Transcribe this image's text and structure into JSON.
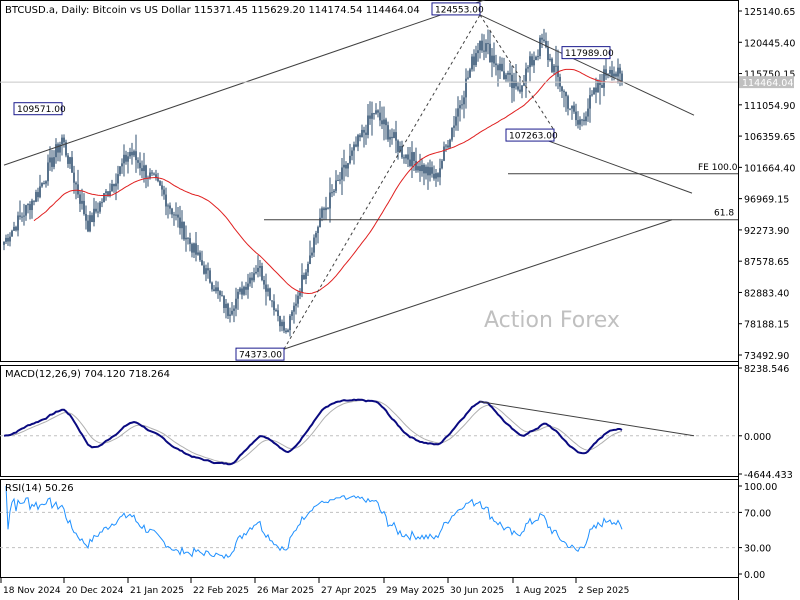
{
  "main_panel": {
    "header": "BTCUSD.a, Daily:  Bitcoin vs US Dollar  115371.45 115629.20 114174.54 114464.04",
    "watermark": "Action Forex",
    "last_price_label": "114464.04",
    "price_ticks": [
      "125140.65",
      "120445.40",
      "115750.15",
      "111054.90",
      "106359.65",
      "101664.40",
      "96969.15",
      "92273.90",
      "87578.65",
      "82883.40",
      "78188.15",
      "73492.90"
    ],
    "annotations": [
      {
        "id": "high-109571",
        "text": "109571.00"
      },
      {
        "id": "low-74373",
        "text": "74373.00"
      },
      {
        "id": "high-124553",
        "text": "124553.00"
      },
      {
        "id": "low-107263",
        "text": "107263.00"
      },
      {
        "id": "high-117989",
        "text": "117989.00"
      }
    ],
    "fib_labels": {
      "fe": "FE 100.0",
      "retr": "61.8"
    }
  },
  "macd_panel": {
    "header": "MACD(12,26,9) 704.120 718.264",
    "ticks": [
      "8238.546",
      "0.000",
      "-4644.433"
    ]
  },
  "rsi_panel": {
    "header": "RSI(14) 50.26",
    "ticks": [
      "100.00",
      "70.00",
      "30.00",
      "0.00"
    ]
  },
  "x_axis": {
    "labels": [
      "18 Nov 2024",
      "20 Dec 2024",
      "21 Jan 2025",
      "22 Feb 2025",
      "26 Mar 2025",
      "27 Apr 2025",
      "29 May 2025",
      "30 Jun 2025",
      "1 Aug 2025",
      "2 Sep 2025"
    ]
  },
  "colors": {
    "candle": "#2f4f6f",
    "ma": "#e02020",
    "macd": "#0a0a80",
    "signal": "#b0b0b0",
    "rsi": "#1e90ff",
    "trend": "#404040",
    "annotation_border": "#1a1a8c"
  },
  "chart_data": [
    {
      "type": "candlestick",
      "title": "BTCUSD.a, Daily: Bitcoin vs US Dollar",
      "ylim": [
        73492.9,
        125140.65
      ],
      "current": {
        "open": 115371.45,
        "high": 115629.2,
        "low": 114174.54,
        "close": 114464.04
      },
      "key_points": [
        {
          "date": "2024-12-17",
          "price": 109571.0,
          "label": "109571.00"
        },
        {
          "date": "2025-04-07",
          "price": 74373.0,
          "label": "74373.00"
        },
        {
          "date": "2025-07-14",
          "price": 124553.0,
          "label": "124553.00"
        },
        {
          "date": "2025-08-20",
          "price": 107263.0,
          "label": "107263.00"
        },
        {
          "date": "2025-09-17",
          "price": 117989.0,
          "label": "117989.00"
        }
      ],
      "approx_closes": [
        {
          "date": "2024-11-18",
          "close": 90500
        },
        {
          "date": "2024-12-05",
          "close": 98000
        },
        {
          "date": "2024-12-17",
          "close": 106000
        },
        {
          "date": "2024-12-30",
          "close": 93000
        },
        {
          "date": "2025-01-20",
          "close": 104000
        },
        {
          "date": "2025-02-05",
          "close": 98000
        },
        {
          "date": "2025-02-25",
          "close": 87000
        },
        {
          "date": "2025-03-10",
          "close": 80000
        },
        {
          "date": "2025-03-25",
          "close": 87000
        },
        {
          "date": "2025-04-08",
          "close": 76500
        },
        {
          "date": "2025-04-25",
          "close": 94000
        },
        {
          "date": "2025-05-22",
          "close": 110000
        },
        {
          "date": "2025-06-05",
          "close": 104000
        },
        {
          "date": "2025-06-22",
          "close": 100000
        },
        {
          "date": "2025-07-14",
          "close": 121000
        },
        {
          "date": "2025-08-01",
          "close": 113000
        },
        {
          "date": "2025-08-14",
          "close": 120500
        },
        {
          "date": "2025-09-01",
          "close": 108000
        },
        {
          "date": "2025-09-17",
          "close": 117000
        },
        {
          "date": "2025-09-23",
          "close": 114464.04
        }
      ],
      "fib_levels": [
        {
          "label": "FE 100.0",
          "price": 100700
        },
        {
          "label": "61.8",
          "price": 93800
        }
      ]
    },
    {
      "type": "line",
      "title": "MACD(12,26,9)",
      "series": [
        {
          "name": "MACD",
          "last": 704.12
        },
        {
          "name": "Signal",
          "last": 718.264
        }
      ],
      "ylim": [
        -4644.433,
        8238.546
      ]
    },
    {
      "type": "line",
      "title": "RSI(14)",
      "series": [
        {
          "name": "RSI",
          "last": 50.26
        }
      ],
      "ylim": [
        0,
        100
      ],
      "levels": [
        70,
        30
      ]
    }
  ]
}
